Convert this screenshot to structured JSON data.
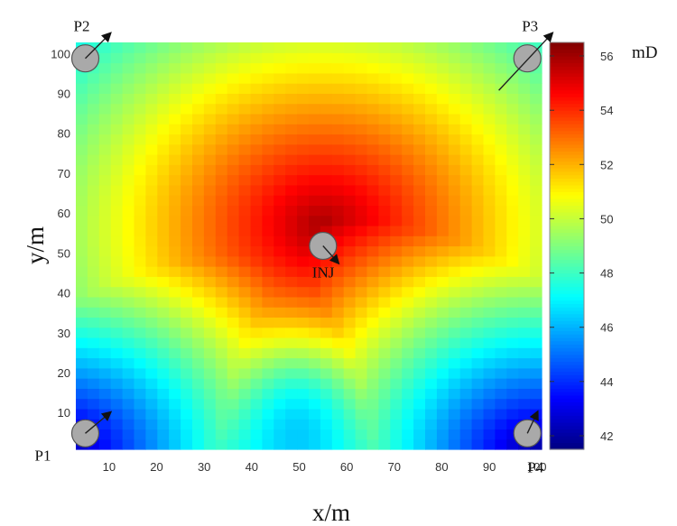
{
  "chart_data": {
    "type": "heatmap",
    "xlabel": "x/m",
    "ylabel": "y/m",
    "xlim": [
      3,
      101
    ],
    "ylim": [
      1,
      103
    ],
    "xticks": [
      10,
      20,
      30,
      40,
      50,
      60,
      70,
      80,
      90,
      100
    ],
    "yticks": [
      10,
      20,
      30,
      40,
      50,
      60,
      70,
      80,
      90,
      100
    ],
    "grid": false,
    "grid_resolution": [
      40,
      40
    ],
    "colorbar": {
      "label": "mD",
      "range": [
        41.5,
        56.5
      ],
      "ticks": [
        42,
        44,
        46,
        48,
        50,
        52,
        54,
        56
      ],
      "colormap": "jet"
    },
    "field_summary": {
      "max_value": 56,
      "max_location": [
        55,
        57
      ],
      "min_value": 41.8,
      "min_regions": [
        "bottom-left corner",
        "bottom-right corner"
      ],
      "ridge_values": {
        "top-left": 50.5,
        "top-center": 54.5,
        "top-right": 55,
        "left-edge-y50": 48,
        "right-edge-y50": 47.5,
        "bottom-center": 48
      }
    },
    "wells": [
      {
        "label": "P1",
        "x": 5,
        "y": 5,
        "arrow_to": [
          10,
          10
        ]
      },
      {
        "label": "P2",
        "x": 5,
        "y": 99,
        "arrow_to": [
          10,
          105
        ]
      },
      {
        "label": "P3",
        "x": 98,
        "y": 99,
        "arrow_to": [
          103,
          105
        ],
        "arrow_from": [
          92,
          91
        ]
      },
      {
        "label": "P4",
        "x": 98,
        "y": 5,
        "arrow_to": [
          100,
          10
        ]
      },
      {
        "label": "INJ",
        "x": 55,
        "y": 52,
        "arrow_to": [
          58,
          48
        ]
      }
    ]
  }
}
